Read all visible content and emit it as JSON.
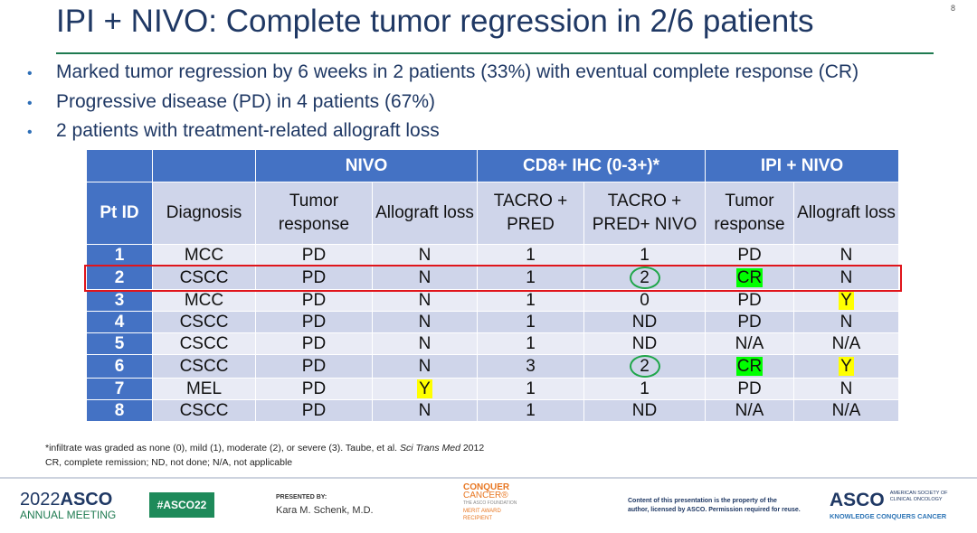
{
  "title": "IPI + NIVO: Complete tumor regression in 2/6 patients",
  "page_number": "8",
  "bullets": [
    "Marked tumor regression by 6 weeks in 2 patients (33%) with eventual complete response (CR)",
    "Progressive disease (PD) in 4 patients (67%)",
    "2 patients with treatment-related allograft loss"
  ],
  "table": {
    "groups": [
      "NIVO",
      "CD8+ IHC (0-3+)*",
      "IPI + NIVO"
    ],
    "columns": [
      "Pt ID",
      "Diagnosis",
      "Tumor response",
      "Allograft loss",
      "TACRO + PRED",
      "TACRO + PRED+ NIVO",
      "Tumor response",
      "Allograft loss"
    ],
    "rows": [
      [
        "1",
        "MCC",
        "PD",
        "N",
        "1",
        "1",
        "PD",
        "N"
      ],
      [
        "2",
        "CSCC",
        "PD",
        "N",
        "1",
        "2",
        "CR",
        "N"
      ],
      [
        "3",
        "MCC",
        "PD",
        "N",
        "1",
        "0",
        "PD",
        "Y"
      ],
      [
        "4",
        "CSCC",
        "PD",
        "N",
        "1",
        "ND",
        "PD",
        "N"
      ],
      [
        "5",
        "CSCC",
        "PD",
        "N",
        "1",
        "ND",
        "N/A",
        "N/A"
      ],
      [
        "6",
        "CSCC",
        "PD",
        "N",
        "3",
        "2",
        "CR",
        "Y"
      ],
      [
        "7",
        "MEL",
        "PD",
        "Y",
        "1",
        "1",
        "PD",
        "N"
      ],
      [
        "8",
        "CSCC",
        "PD",
        "N",
        "1",
        "ND",
        "N/A",
        "N/A"
      ]
    ],
    "highlight_colors": {
      "CR": "#00ff00",
      "Y": "#ffff00",
      "circle": "#1fa64a",
      "row_box": "#e0151b"
    }
  },
  "footnotes": {
    "line1_a": "*infiltrate was graded as none (0), mild (1), moderate (2), or severe (3). Taube, et al. ",
    "line1_journal": "Sci Trans Med",
    "line1_b": " 2012",
    "line2": "CR, complete remission; ND, not done; N/A, not applicable"
  },
  "footer": {
    "meeting_year": "2022",
    "meeting_org": "ASCO",
    "meeting_sub": "ANNUAL MEETING",
    "hashtag": "#ASCO22",
    "presented_by": "PRESENTED BY:",
    "presenter": "Kara M. Schenk, M.D.",
    "award": [
      "CONQUER",
      "CANCER®",
      "THE ASCO FOUNDATION",
      "MERIT AWARD",
      "RECIPIENT"
    ],
    "copyright": [
      "Content of this presentation is the property of the",
      "author, licensed by ASCO. Permission required for reuse."
    ],
    "asco_logo": "ASCO",
    "asco_name": [
      "AMERICAN SOCIETY OF",
      "CLINICAL ONCOLOGY"
    ],
    "asco_tagline": "KNOWLEDGE CONQUERS CANCER"
  }
}
